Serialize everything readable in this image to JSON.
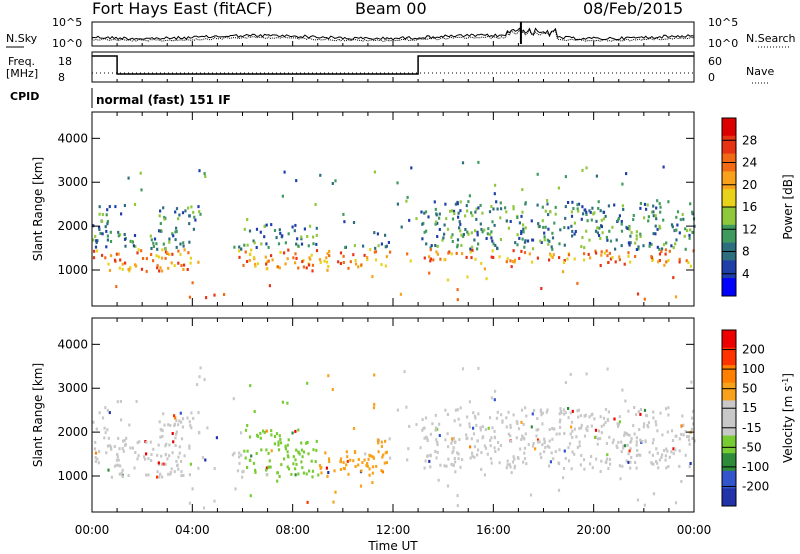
{
  "header": {
    "station": "Fort Hays East (fitACF)",
    "beam": "Beam 00",
    "date": "08/Feb/2015"
  },
  "noise_panel": {
    "left_label": "N.Sky",
    "right_label": "N.Search",
    "left_ticks": [
      "10^5",
      "10^0"
    ],
    "right_ticks": [
      "10^5",
      "10^0"
    ]
  },
  "freq_panel": {
    "left_label_1": "Freq.",
    "left_label_2": "[MHz]",
    "right_label": "Nave",
    "left_ticks": [
      "18",
      "8"
    ],
    "right_ticks": [
      "60",
      "0"
    ]
  },
  "cpid": {
    "label": "CPID",
    "value": "normal (fast) 151 IF"
  },
  "colors": {
    "power": [
      "#0000ff",
      "#1f3fa8",
      "#2d6e7e",
      "#3f9a5e",
      "#8fc83c",
      "#e8d21a",
      "#f7a21a",
      "#f26a14",
      "#e83214",
      "#dd0000"
    ],
    "velocity": [
      "#2233aa",
      "#3355cc",
      "#2e8b3a",
      "#77cc33",
      "#c8c8c8",
      "#c8c8c8",
      "#f7a21a",
      "#ff8000",
      "#ff3300",
      "#ee0000"
    ]
  },
  "chart_data": [
    {
      "type": "heatmap",
      "title": "Power",
      "ylabel": "Slant Range [km]",
      "xlabel": "",
      "xlim": [
        0,
        24
      ],
      "ylim": [
        180,
        4600
      ],
      "yticks": [
        1000,
        2000,
        3000,
        4000
      ],
      "xtick_labels": [
        "00:00",
        "04:00",
        "08:00",
        "12:00",
        "16:00",
        "20:00",
        "00:00"
      ],
      "colorbar": {
        "label": "Power",
        "unit": "[dB]",
        "ticks": [
          "28",
          "24",
          "20",
          "16",
          "12",
          "8",
          "4"
        ],
        "range": [
          0,
          30
        ]
      }
    },
    {
      "type": "heatmap",
      "title": "Velocity",
      "ylabel": "Slant Range [km]",
      "xlabel": "Time UT",
      "xlim": [
        0,
        24
      ],
      "ylim": [
        180,
        4600
      ],
      "yticks": [
        1000,
        2000,
        3000,
        4000
      ],
      "xtick_labels": [
        "00:00",
        "04:00",
        "08:00",
        "12:00",
        "16:00",
        "20:00",
        "00:00"
      ],
      "colorbar": {
        "label": "Velocity",
        "unit": "[m s",
        "unit_sup": "-1",
        "unit_end": "]",
        "ticks": [
          "200",
          "100",
          "50",
          "15",
          "-15",
          "-50",
          "-100",
          "-200"
        ],
        "range": [
          -250,
          250
        ]
      }
    }
  ]
}
